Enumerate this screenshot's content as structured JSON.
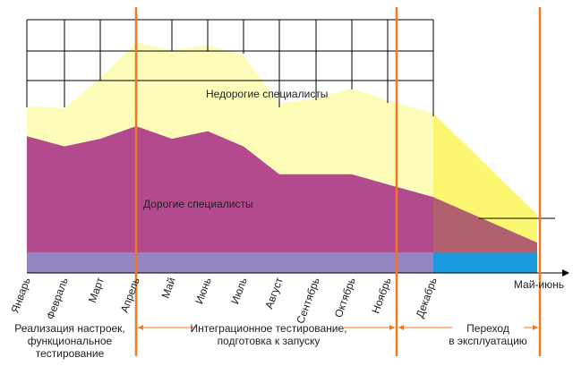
{
  "chart_data": {
    "type": "area",
    "stacked": true,
    "categories": [
      "Январь",
      "Февраль",
      "Март",
      "Апрель",
      "Май",
      "Июнь",
      "Июль",
      "Август",
      "Сентябрь",
      "Октябрь",
      "Ноябрь",
      "Декабрь",
      "Май-июнь"
    ],
    "series": [
      {
        "color": "#9484c2",
        "color_after": "#1a9be0",
        "values": [
          8,
          8,
          8,
          8,
          8,
          8,
          8,
          8,
          8,
          8,
          8,
          8,
          8
        ]
      },
      {
        "name": "Дорогие специалисты",
        "color": "#b34a8e",
        "color_after": "#b0606e",
        "values": [
          46,
          42,
          45,
          50,
          45,
          48,
          42,
          31,
          31,
          31,
          27,
          22,
          4
        ]
      },
      {
        "name": "Недорогие специалисты",
        "color": "#fdfcb8",
        "color_after": "#fbf771",
        "values": [
          12,
          15,
          24,
          33,
          35,
          34,
          36,
          28,
          30,
          34,
          33,
          33,
          11
        ]
      }
    ],
    "ylim": [
      0,
      100
    ],
    "phases": [
      {
        "lines": [
          "Реализация настроек,",
          "функциональное",
          "тестирование"
        ]
      },
      {
        "lines": [
          "Интеграционное тестирование,",
          "подготовка к запуску"
        ]
      },
      {
        "lines": [
          "Переход",
          "в эксплуатацию"
        ]
      }
    ]
  }
}
